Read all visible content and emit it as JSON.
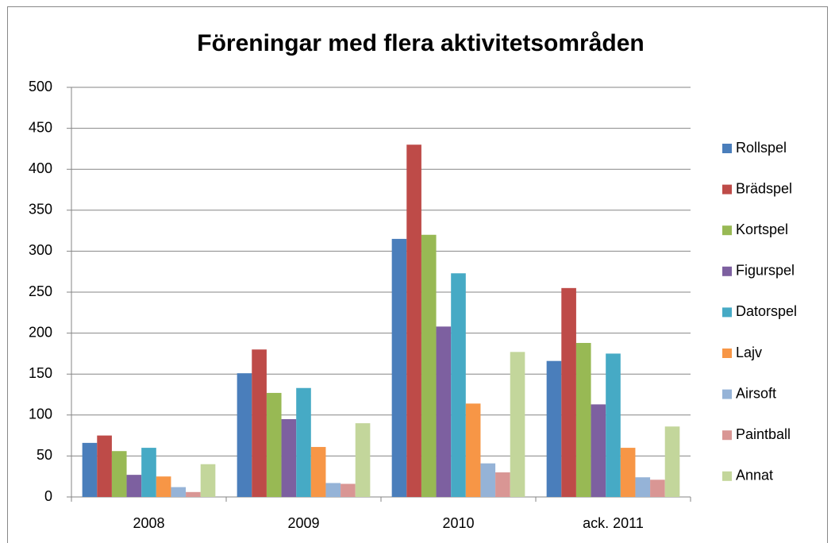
{
  "chart_data": {
    "type": "bar",
    "title": "Föreningar med flera aktivitetsområden",
    "categories": [
      "2008",
      "2009",
      "2010",
      "ack. 2011"
    ],
    "series": [
      {
        "name": "Rollspel",
        "color": "#4a7ebb",
        "values": [
          66,
          151,
          315,
          166
        ]
      },
      {
        "name": "Brädspel",
        "color": "#be4b48",
        "values": [
          75,
          180,
          430,
          255
        ]
      },
      {
        "name": "Kortspel",
        "color": "#98b954",
        "values": [
          56,
          127,
          320,
          188
        ]
      },
      {
        "name": "Figurspel",
        "color": "#7d60a0",
        "values": [
          27,
          95,
          208,
          113
        ]
      },
      {
        "name": "Datorspel",
        "color": "#46aac5",
        "values": [
          60,
          133,
          273,
          175
        ]
      },
      {
        "name": "Lajv",
        "color": "#f79646",
        "values": [
          25,
          61,
          114,
          60
        ]
      },
      {
        "name": "Airsoft",
        "color": "#95b3d7",
        "values": [
          12,
          17,
          41,
          24
        ]
      },
      {
        "name": "Paintball",
        "color": "#d99694",
        "values": [
          6,
          16,
          30,
          21
        ]
      },
      {
        "name": "Annat",
        "color": "#c3d69b",
        "values": [
          40,
          90,
          177,
          86
        ]
      }
    ],
    "ylim": [
      0,
      500
    ],
    "yticks": [
      0,
      50,
      100,
      150,
      200,
      250,
      300,
      350,
      400,
      450,
      500
    ],
    "grid": true,
    "legend": "right"
  }
}
